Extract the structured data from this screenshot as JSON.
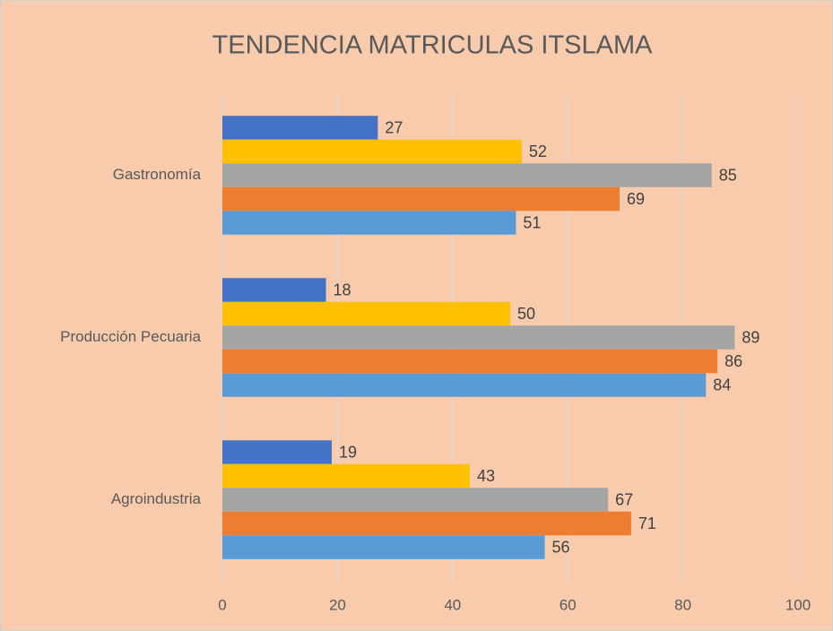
{
  "chart_data": {
    "type": "bar",
    "orientation": "horizontal",
    "title": "TENDENCIA MATRICULAS ITSLAMA",
    "categories": [
      "Gastronomía",
      "Producción Pecuaria",
      "Agroindustria"
    ],
    "series": [
      {
        "color": "#4472c4",
        "values": [
          27,
          18,
          19
        ]
      },
      {
        "color": "#ffc000",
        "values": [
          52,
          50,
          43
        ]
      },
      {
        "color": "#a5a5a5",
        "values": [
          85,
          89,
          67
        ]
      },
      {
        "color": "#ed7d31",
        "values": [
          69,
          86,
          71
        ]
      },
      {
        "color": "#5b9bd5",
        "values": [
          51,
          84,
          56
        ]
      }
    ],
    "xlim": [
      0,
      100
    ],
    "xticks": [
      0,
      20,
      40,
      60,
      80,
      100
    ],
    "grid": true,
    "data_labels": true
  }
}
